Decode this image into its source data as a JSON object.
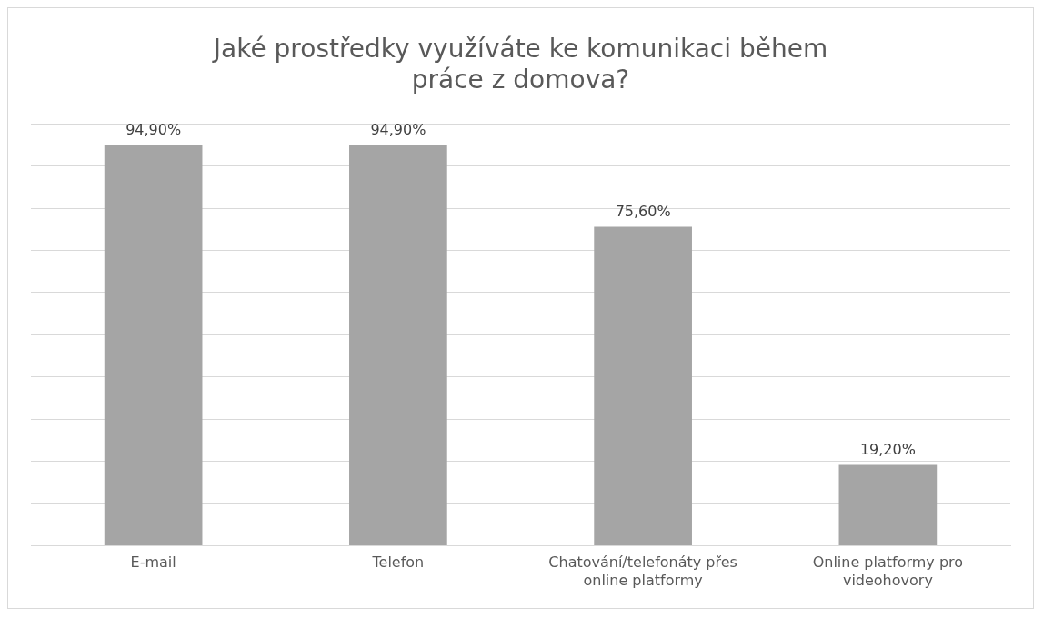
{
  "chart_data": {
    "type": "bar",
    "title": "Jaké prostředky využíváte ke komunikaci během práce z domova?",
    "categories": [
      "E-mail",
      "Telefon",
      "Chatování/telefonáty přes online platformy",
      "Online platformy pro videohovory"
    ],
    "values": [
      94.9,
      94.9,
      75.6,
      19.2
    ],
    "value_labels": [
      "94,90%",
      "94,90%",
      "75,60%",
      "19,20%"
    ],
    "color": "#a5a5a5",
    "ylim": [
      0,
      100
    ],
    "yticks": [
      {
        "value": 0,
        "label": null
      },
      {
        "value": 10,
        "label": null
      },
      {
        "value": 20,
        "label": null
      },
      {
        "value": 30,
        "label": null
      },
      {
        "value": 40,
        "label": null
      },
      {
        "value": 50,
        "label": null
      },
      {
        "value": 60,
        "label": null
      },
      {
        "value": 70,
        "label": null
      },
      {
        "value": 80,
        "label": null
      },
      {
        "value": 90,
        "label": null
      },
      {
        "value": 100,
        "label": null
      }
    ],
    "tick_labels": "x",
    "grid": "y",
    "legend": false
  }
}
